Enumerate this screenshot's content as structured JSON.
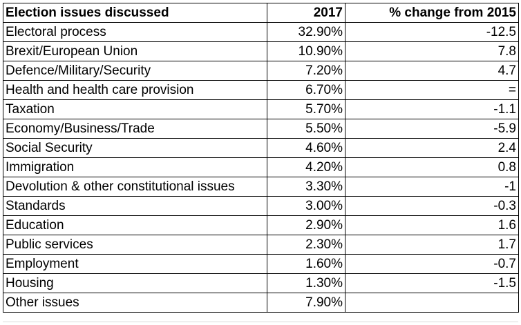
{
  "chart_data": {
    "type": "table",
    "columns": [
      "Election issues discussed",
      "2017",
      "% change from 2015"
    ],
    "rows": [
      {
        "issue": "Electoral process",
        "share_2017": "32.90%",
        "change_from_2015": "-12.5"
      },
      {
        "issue": "Brexit/European Union",
        "share_2017": "10.90%",
        "change_from_2015": "7.8"
      },
      {
        "issue": "Defence/Military/Security",
        "share_2017": "7.20%",
        "change_from_2015": "4.7"
      },
      {
        "issue": "Health and health care provision",
        "share_2017": "6.70%",
        "change_from_2015": "="
      },
      {
        "issue": "Taxation",
        "share_2017": "5.70%",
        "change_from_2015": "-1.1"
      },
      {
        "issue": "Economy/Business/Trade",
        "share_2017": "5.50%",
        "change_from_2015": "-5.9"
      },
      {
        "issue": "Social Security",
        "share_2017": "4.60%",
        "change_from_2015": "2.4"
      },
      {
        "issue": "Immigration",
        "share_2017": "4.20%",
        "change_from_2015": "0.8"
      },
      {
        "issue": "Devolution & other constitutional issues",
        "share_2017": "3.30%",
        "change_from_2015": "-1"
      },
      {
        "issue": "Standards",
        "share_2017": "3.00%",
        "change_from_2015": "-0.3"
      },
      {
        "issue": "Education",
        "share_2017": "2.90%",
        "change_from_2015": "1.6"
      },
      {
        "issue": "Public services",
        "share_2017": "2.30%",
        "change_from_2015": "1.7"
      },
      {
        "issue": "Employment",
        "share_2017": "1.60%",
        "change_from_2015": "-0.7"
      },
      {
        "issue": "Housing",
        "share_2017": "1.30%",
        "change_from_2015": "-1.5"
      },
      {
        "issue": "Other issues",
        "share_2017": "7.90%",
        "change_from_2015": ""
      }
    ]
  }
}
